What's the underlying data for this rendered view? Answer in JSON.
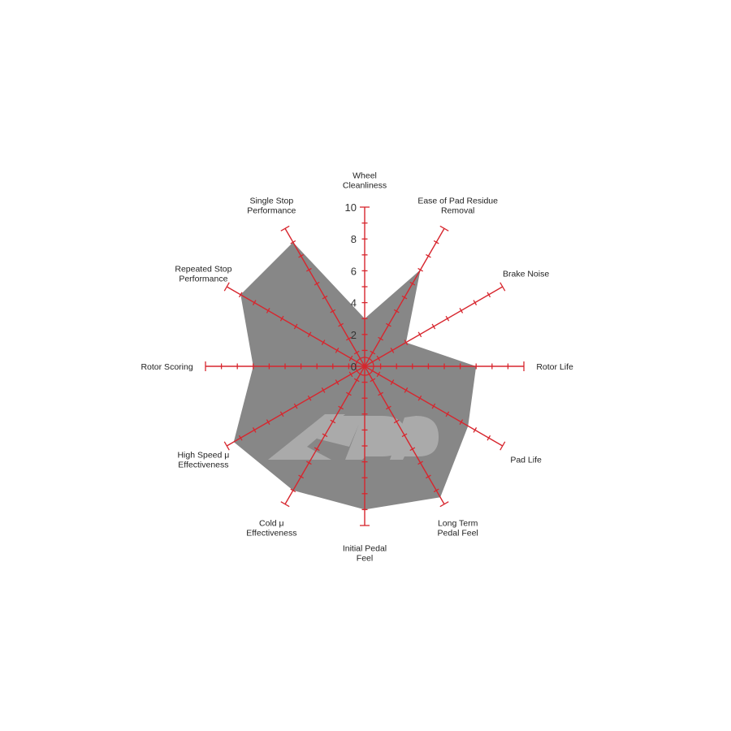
{
  "chart_data": {
    "type": "radar",
    "title": "",
    "categories": [
      [
        "Wheel",
        "Cleanliness"
      ],
      [
        "Ease of Pad Residue",
        "Removal"
      ],
      [
        "Brake Noise"
      ],
      [
        "Rotor Life"
      ],
      [
        "Pad Life"
      ],
      [
        "Long Term",
        "Pedal Feel"
      ],
      [
        "Initial Pedal",
        "Feel"
      ],
      [
        "Cold μ",
        "Effectiveness"
      ],
      [
        "High Speed μ",
        "Effectiveness"
      ],
      [
        "Rotor Scoring"
      ],
      [
        "Repeated Stop",
        "Performance"
      ],
      [
        "Single Stop",
        "Performance"
      ]
    ],
    "values": [
      3,
      7,
      3,
      7,
      7.5,
      9.5,
      9,
      9,
      9.5,
      7,
      9,
      9
    ],
    "rlim": [
      0,
      10
    ],
    "tick_labels": [
      "0",
      "2",
      "4",
      "6",
      "8",
      "10"
    ],
    "colors": {
      "fill": "#878787",
      "axis": "#d7262e",
      "watermark": "#aaaaaa",
      "text": "#222222"
    },
    "watermark": "KPP"
  }
}
